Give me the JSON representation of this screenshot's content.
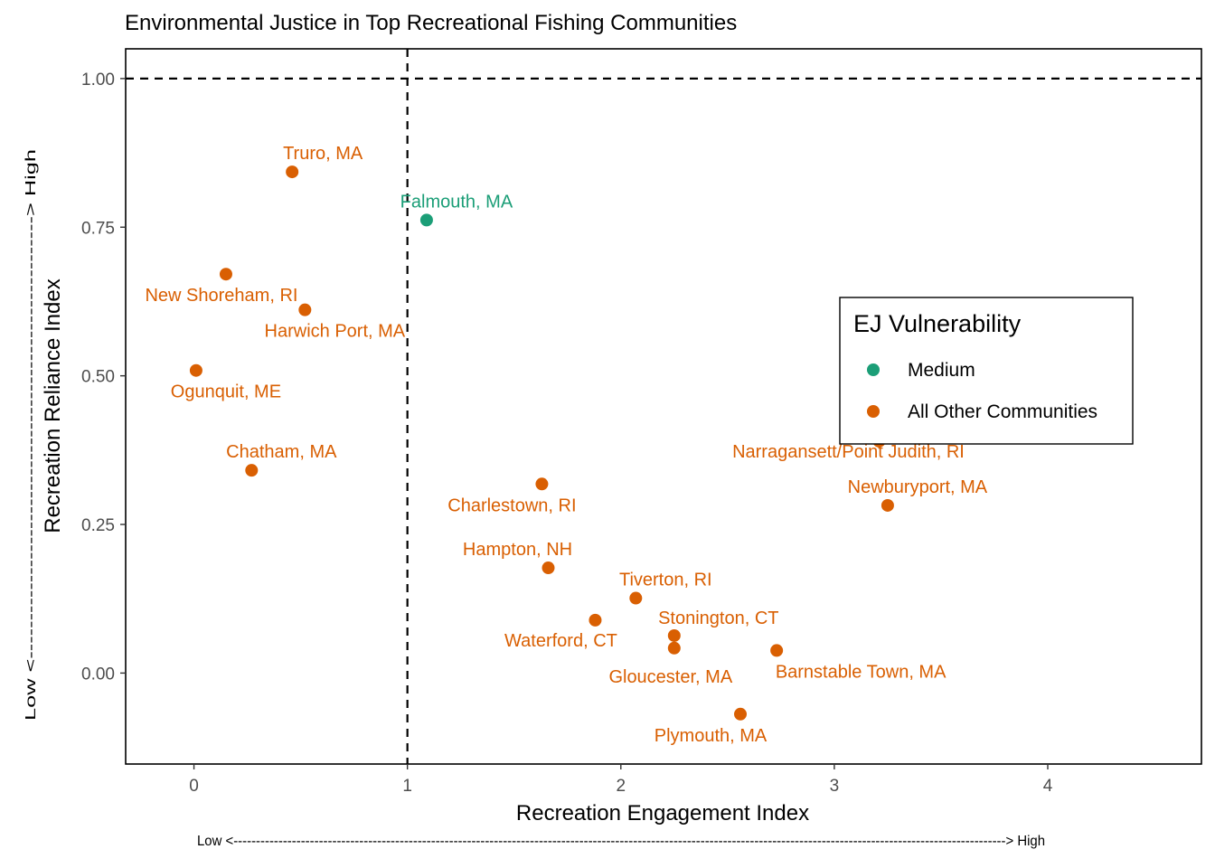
{
  "chart_data": {
    "type": "scatter",
    "title": "Environmental Justice in Top Recreational Fishing Communities",
    "xlabel": "Recreation Engagement Index",
    "ylabel": "Recreation Reliance Index",
    "x_note": "Low <----------------------------------------------------------------------------------------------------------------------------------------------------------------------------> High",
    "y_note": "Low <----------------------------------------------------------> High",
    "xlim": [
      -0.32,
      4.72
    ],
    "ylim": [
      -0.153,
      1.05
    ],
    "x_ticks": [
      0,
      1,
      2,
      3,
      4
    ],
    "x_tick_labels": [
      "0",
      "1",
      "2",
      "3",
      "4"
    ],
    "y_ticks": [
      0,
      0.25,
      0.5,
      0.75,
      1
    ],
    "y_tick_labels": [
      "0.00",
      "0.25",
      "0.50",
      "0.75",
      "1.00"
    ],
    "reference_lines": {
      "vertical_x": 1,
      "horizontal_y": 1
    },
    "grid": false,
    "legend": {
      "title": "EJ Vulnerability",
      "placement": "inside-right",
      "entries": [
        {
          "label": "Medium",
          "color": "#1b9e77"
        },
        {
          "label": "All Other Communities",
          "color": "#d95f02"
        }
      ]
    },
    "points": [
      {
        "label": "Truro, MA",
        "x": 0.46,
        "y": 0.843,
        "group": "All Other Communities",
        "label_pos": "above"
      },
      {
        "label": "Falmouth, MA",
        "x": 1.09,
        "y": 0.762,
        "group": "Medium",
        "label_pos": "above"
      },
      {
        "label": "New Shoreham, RI",
        "x": 0.15,
        "y": 0.671,
        "group": "All Other Communities",
        "label_pos": "below"
      },
      {
        "label": "Harwich Port, MA",
        "x": 0.52,
        "y": 0.611,
        "group": "All Other Communities",
        "label_pos": "below"
      },
      {
        "label": "Ogunquit, ME",
        "x": 0.01,
        "y": 0.509,
        "group": "All Other Communities",
        "label_pos": "below"
      },
      {
        "label": "Chatham, MA",
        "x": 0.27,
        "y": 0.341,
        "group": "All Other Communities",
        "label_pos": "above"
      },
      {
        "label": "Charlestown, RI",
        "x": 1.63,
        "y": 0.318,
        "group": "All Other Communities",
        "label_pos": "below"
      },
      {
        "label": "Narragansett/Point Judith, RI",
        "x": 3.21,
        "y": 0.39,
        "group": "All Other Communities",
        "label_pos": "above"
      },
      {
        "label": "Newburyport, MA",
        "x": 3.25,
        "y": 0.282,
        "group": "All Other Communities",
        "label_pos": "above"
      },
      {
        "label": "Hampton, NH",
        "x": 1.66,
        "y": 0.177,
        "group": "All Other Communities",
        "label_pos": "above"
      },
      {
        "label": "Tiverton, RI",
        "x": 2.07,
        "y": 0.126,
        "group": "All Other Communities",
        "label_pos": "above"
      },
      {
        "label": "Waterford, CT",
        "x": 1.88,
        "y": 0.089,
        "group": "All Other Communities",
        "label_pos": "below-left"
      },
      {
        "label": "Stonington, CT",
        "x": 2.25,
        "y": 0.063,
        "group": "All Other Communities",
        "label_pos": "above-right"
      },
      {
        "label": "Gloucester, MA",
        "x": 2.25,
        "y": 0.042,
        "group": "All Other Communities",
        "label_pos": "below"
      },
      {
        "label": "Barnstable Town, MA",
        "x": 2.73,
        "y": 0.038,
        "group": "All Other Communities",
        "label_pos": "below-right"
      },
      {
        "label": "Plymouth, MA",
        "x": 2.56,
        "y": -0.069,
        "group": "All Other Communities",
        "label_pos": "below"
      }
    ]
  }
}
